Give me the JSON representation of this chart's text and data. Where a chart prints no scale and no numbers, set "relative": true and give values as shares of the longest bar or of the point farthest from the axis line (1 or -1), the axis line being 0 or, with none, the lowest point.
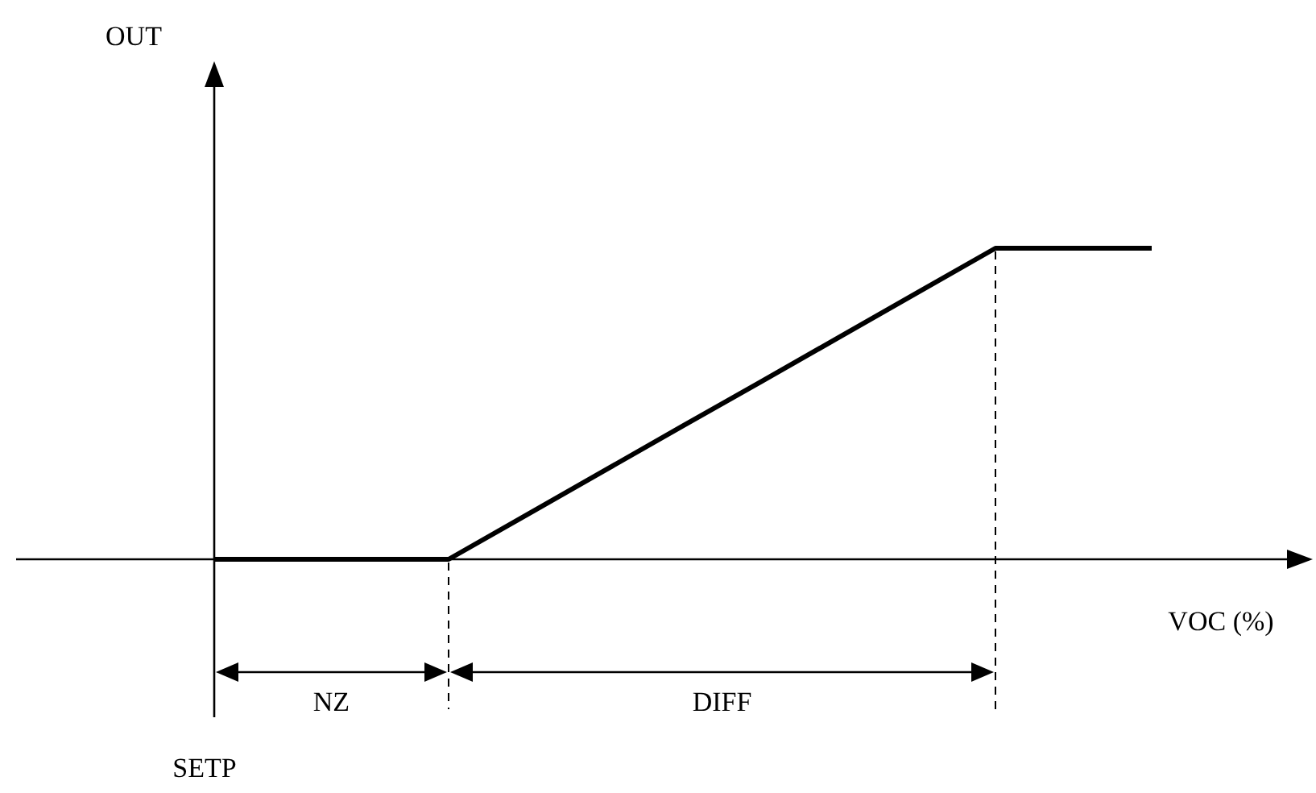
{
  "chart_data": {
    "type": "line",
    "relative": true,
    "xlabel": "VOC (%)",
    "categories": [
      null,
      null,
      null,
      null,
      null,
      null,
      null,
      null,
      null,
      null,
      null,
      null,
      null
    ],
    "series": [
      {
        "color": "#000000",
        "values": [
          0,
          0,
          0,
          0,
          0.143,
          0.286,
          0.429,
          0.571,
          0.714,
          0.857,
          1,
          1,
          1
        ]
      }
    ],
    "line_style": "solid",
    "annotations": [
      "NZ",
      "DIFF",
      "SETP",
      "OUT"
    ]
  }
}
